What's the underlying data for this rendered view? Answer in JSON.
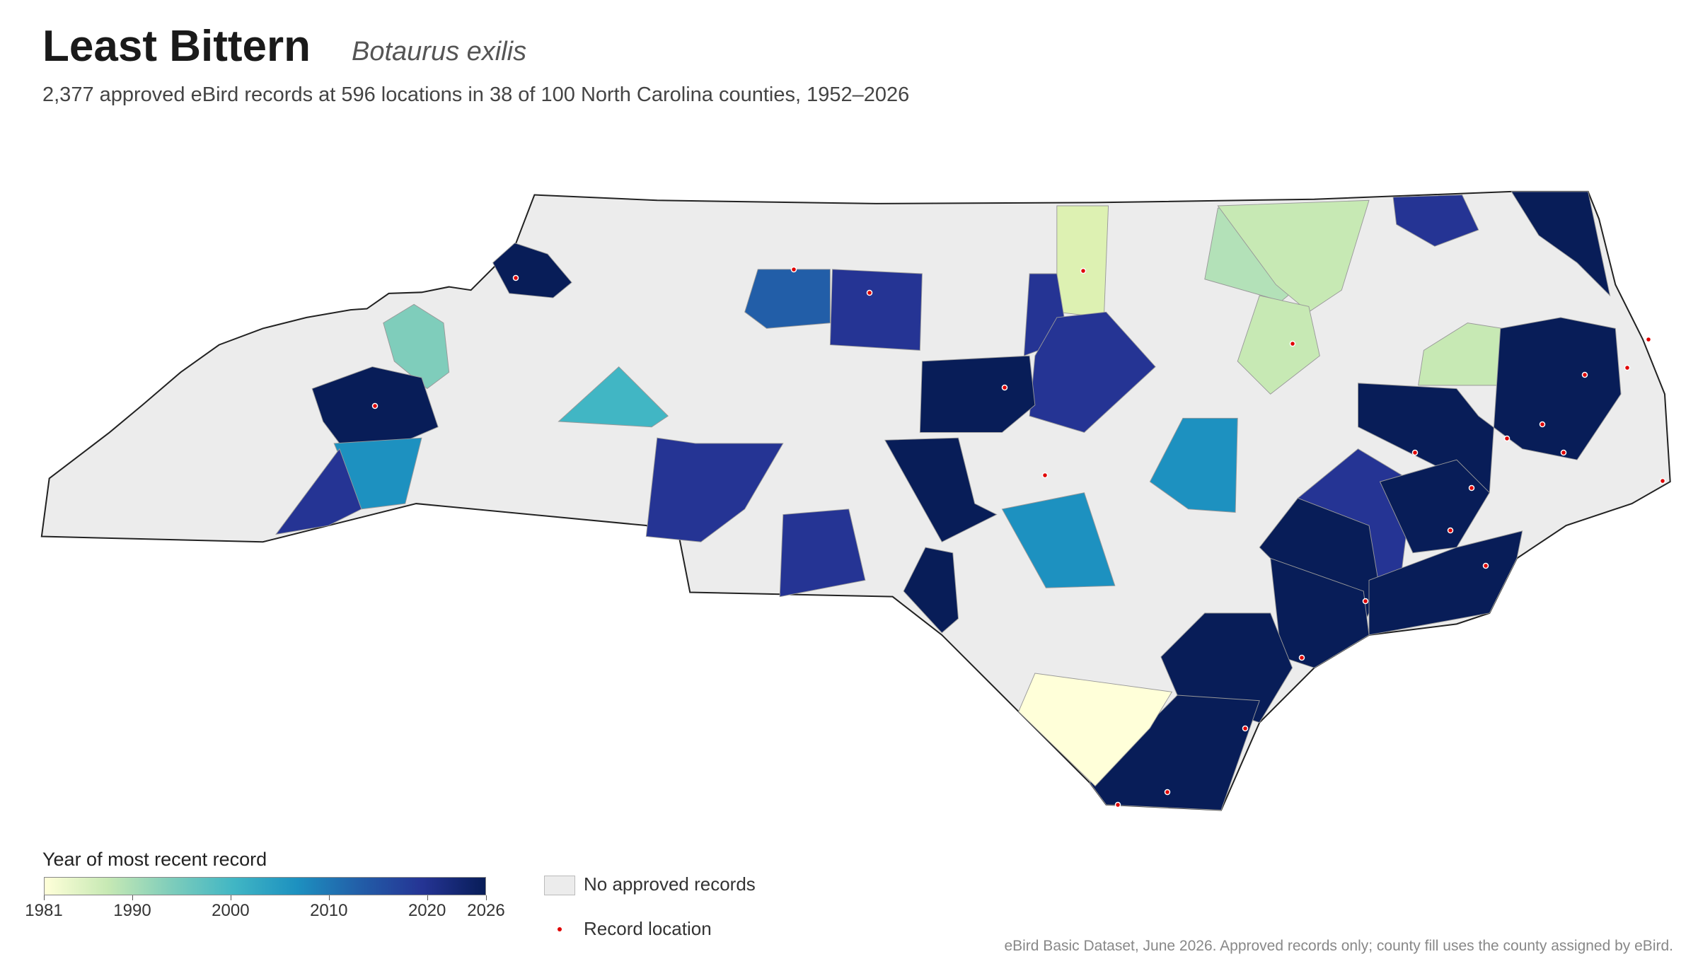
{
  "header": {
    "title": "Least Bittern",
    "scientific_name": "Botaurus exilis",
    "subtitle": "2,377 approved eBird records at 596 locations in 38 of 100 North Carolina counties, 1952–2026"
  },
  "legend": {
    "title": "Year of most recent record",
    "range": [
      1981,
      2026
    ],
    "ticks": [
      1981,
      1990,
      2000,
      2010,
      2020,
      2026
    ],
    "colorscale": [
      "#ffffd9",
      "#c7e9b4",
      "#7fcdbb",
      "#41b6c4",
      "#1d91c0",
      "#225ea8",
      "#253494",
      "#081d58"
    ],
    "no_records": "No approved records",
    "record_location": "Record location"
  },
  "footnote": "eBird Basic Dataset, June 2026. Approved records only; county fill uses the county assigned by eBird."
}
